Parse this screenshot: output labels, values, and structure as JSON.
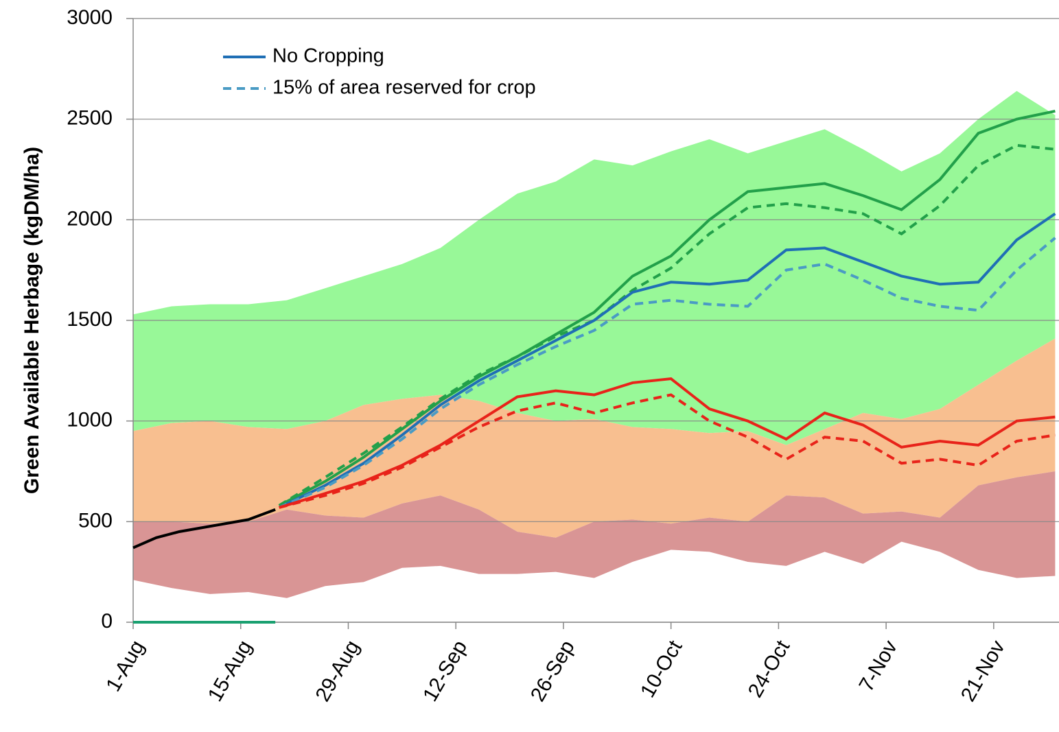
{
  "chart_data": {
    "type": "line",
    "ylabel": "Green Available Herbage (kgDM/ha)",
    "xlim": [
      0,
      120.5
    ],
    "ylim": [
      0,
      3000
    ],
    "yticks": [
      0,
      500,
      1000,
      1500,
      2000,
      2500,
      3000
    ],
    "xticks": [
      {
        "value": 0,
        "label": "1-Aug"
      },
      {
        "value": 14,
        "label": "15-Aug"
      },
      {
        "value": 28,
        "label": "29-Aug"
      },
      {
        "value": 42,
        "label": "12-Sep"
      },
      {
        "value": 56,
        "label": "26-Sep"
      },
      {
        "value": 70,
        "label": "10-Oct"
      },
      {
        "value": 84,
        "label": "24-Oct"
      },
      {
        "value": 98,
        "label": "7-Nov"
      },
      {
        "value": 112,
        "label": "21-Nov"
      }
    ],
    "grid": true,
    "legend": "upper left",
    "bands": [
      {
        "color": "#98f898",
        "x": [
          0,
          5,
          10,
          15,
          20,
          25,
          30,
          35,
          40,
          45,
          50,
          55,
          60,
          65,
          70,
          75,
          80,
          85,
          90,
          95,
          100,
          105,
          110,
          115,
          120
        ],
        "values": [
          1530,
          1570,
          1580,
          1580,
          1600,
          1660,
          1720,
          1780,
          1860,
          2000,
          2130,
          2190,
          2300,
          2270,
          2340,
          2400,
          2330,
          2390,
          2450,
          2350,
          2240,
          2330,
          2500,
          2640,
          2520
        ],
        "lower": [
          950,
          990,
          1000,
          970,
          960,
          1000,
          1080,
          1110,
          1130,
          1100,
          1040,
          1000,
          1010,
          970,
          960,
          940,
          950,
          880,
          960,
          1040,
          1010,
          1060,
          1180,
          1300,
          1410
        ]
      },
      {
        "color": "#f8bf90",
        "x": [
          0,
          5,
          10,
          15,
          20,
          25,
          30,
          35,
          40,
          45,
          50,
          55,
          60,
          65,
          70,
          75,
          80,
          85,
          90,
          95,
          100,
          105,
          110,
          115,
          120
        ],
        "values": [
          950,
          990,
          1000,
          970,
          960,
          1000,
          1080,
          1110,
          1130,
          1100,
          1040,
          1000,
          1010,
          970,
          960,
          940,
          950,
          880,
          960,
          1040,
          1010,
          1060,
          1180,
          1300,
          1410
        ],
        "lower": [
          500,
          500,
          490,
          500,
          560,
          530,
          520,
          590,
          630,
          560,
          450,
          420,
          500,
          510,
          490,
          520,
          500,
          630,
          620,
          540,
          550,
          520,
          680,
          720,
          750
        ]
      },
      {
        "color": "#d99595",
        "x": [
          0,
          5,
          10,
          15,
          20,
          25,
          30,
          35,
          40,
          45,
          50,
          55,
          60,
          65,
          70,
          75,
          80,
          85,
          90,
          95,
          100,
          105,
          110,
          115,
          120
        ],
        "values": [
          500,
          500,
          490,
          500,
          560,
          530,
          520,
          590,
          630,
          560,
          450,
          420,
          500,
          510,
          490,
          520,
          500,
          630,
          620,
          540,
          550,
          520,
          680,
          720,
          750
        ],
        "lower": [
          210,
          170,
          140,
          150,
          120,
          180,
          200,
          270,
          280,
          240,
          240,
          250,
          220,
          300,
          360,
          350,
          300,
          280,
          350,
          290,
          400,
          350,
          260,
          220,
          230
        ]
      }
    ],
    "series": [
      {
        "color": "#22a04a",
        "dash": false,
        "x": [
          19,
          25,
          30,
          35,
          40,
          45,
          50,
          55,
          60,
          65,
          70,
          75,
          80,
          85,
          90,
          95,
          100,
          105,
          110,
          115,
          120
        ],
        "values": [
          580,
          700,
          820,
          960,
          1100,
          1220,
          1320,
          1430,
          1540,
          1720,
          1820,
          2000,
          2140,
          2160,
          2180,
          2120,
          2050,
          2200,
          2430,
          2500,
          2540
        ]
      },
      {
        "color": "#22a04a",
        "dash": true,
        "x": [
          19,
          25,
          30,
          35,
          40,
          45,
          50,
          55,
          60,
          65,
          70,
          75,
          80,
          85,
          90,
          95,
          100,
          105,
          110,
          115,
          120
        ],
        "values": [
          580,
          720,
          840,
          970,
          1110,
          1230,
          1320,
          1420,
          1500,
          1650,
          1760,
          1930,
          2060,
          2080,
          2060,
          2030,
          1930,
          2070,
          2270,
          2370,
          2350
        ]
      },
      {
        "name": "No Cropping",
        "color": "#1f6fb5",
        "dash": false,
        "x": [
          19,
          25,
          30,
          35,
          40,
          45,
          50,
          55,
          60,
          65,
          70,
          75,
          80,
          85,
          90,
          95,
          100,
          105,
          110,
          115,
          120
        ],
        "values": [
          570,
          680,
          790,
          930,
          1080,
          1200,
          1300,
          1400,
          1500,
          1640,
          1690,
          1680,
          1700,
          1850,
          1860,
          1790,
          1720,
          1680,
          1690,
          1900,
          2030
        ]
      },
      {
        "name": "15% of area reserved for crop",
        "color": "#4a9bc4",
        "dash": true,
        "x": [
          19,
          25,
          30,
          35,
          40,
          45,
          50,
          55,
          60,
          65,
          70,
          75,
          80,
          85,
          90,
          95,
          100,
          105,
          110,
          115,
          120
        ],
        "values": [
          570,
          670,
          780,
          910,
          1060,
          1180,
          1280,
          1370,
          1450,
          1580,
          1600,
          1580,
          1570,
          1750,
          1780,
          1700,
          1610,
          1570,
          1550,
          1750,
          1910
        ]
      },
      {
        "color": "#e8231a",
        "dash": false,
        "x": [
          19,
          25,
          30,
          35,
          40,
          45,
          50,
          55,
          60,
          65,
          70,
          75,
          80,
          85,
          90,
          95,
          100,
          105,
          110,
          115,
          120
        ],
        "values": [
          570,
          640,
          700,
          780,
          880,
          1000,
          1120,
          1150,
          1130,
          1190,
          1210,
          1060,
          1000,
          910,
          1040,
          980,
          870,
          900,
          880,
          1000,
          1020
        ]
      },
      {
        "color": "#e8231a",
        "dash": true,
        "x": [
          19,
          25,
          30,
          35,
          40,
          45,
          50,
          55,
          60,
          65,
          70,
          75,
          80,
          85,
          90,
          95,
          100,
          105,
          110,
          115,
          120
        ],
        "values": [
          570,
          630,
          690,
          770,
          870,
          970,
          1050,
          1090,
          1040,
          1090,
          1130,
          1000,
          920,
          810,
          920,
          900,
          790,
          810,
          780,
          900,
          930
        ]
      },
      {
        "color": "#000000",
        "dash": false,
        "x": [
          0,
          3,
          6,
          9,
          12,
          15,
          18.5
        ],
        "values": [
          370,
          420,
          450,
          470,
          490,
          510,
          560
        ]
      },
      {
        "color": "#1aa070",
        "dash": false,
        "x": [
          0,
          18.5
        ],
        "values": [
          0,
          0
        ]
      }
    ]
  }
}
